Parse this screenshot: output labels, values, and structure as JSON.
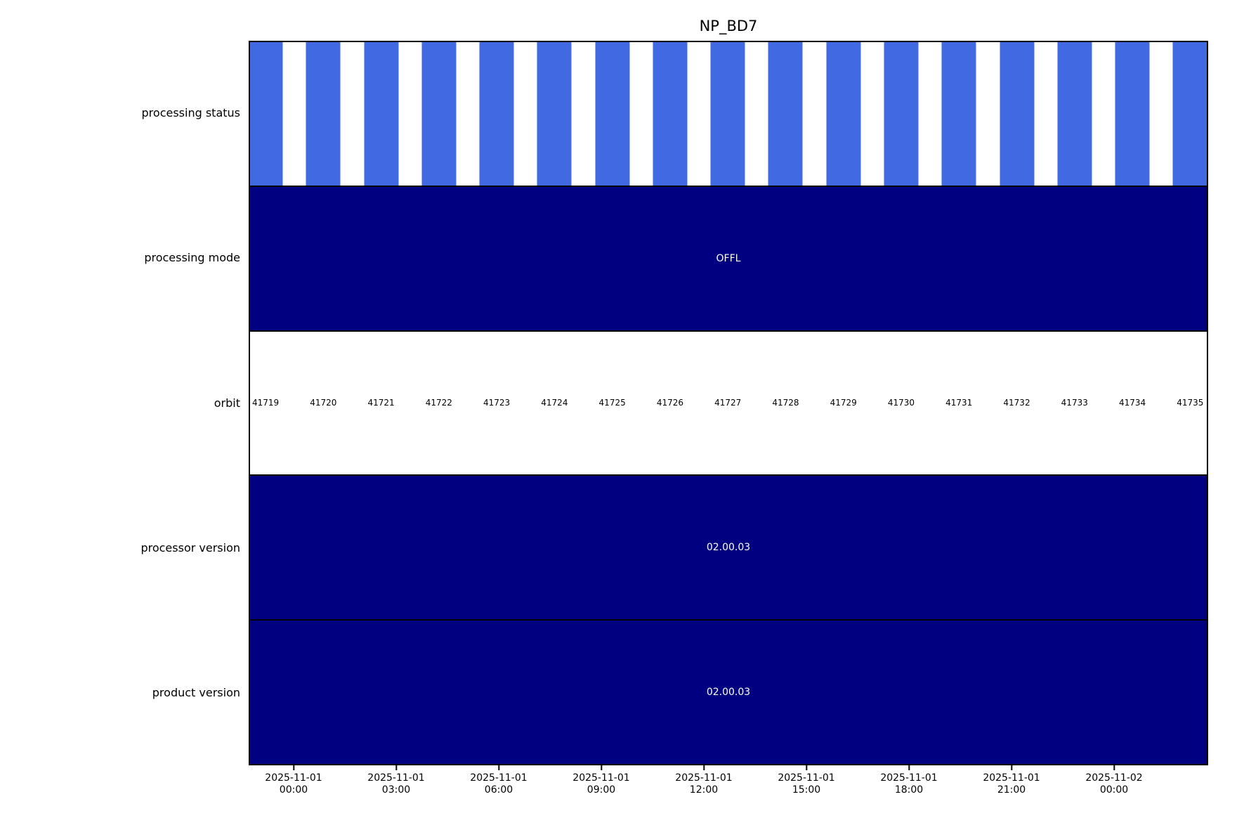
{
  "title": "NP_BD7",
  "colors": {
    "background": "#FFFFFF",
    "bar_blue": "#4169E1",
    "band_navy": "#000080",
    "annotation_text": "#FFFFFF",
    "label_text": "#000000",
    "border": "#000000"
  },
  "chart_data": {
    "type": "bar",
    "subtype": "timeline-status-bands",
    "title": "NP_BD7",
    "grid": false,
    "legend": false,
    "rows": [
      {
        "label": "processing status",
        "kind": "bars",
        "bar_color": "#4169E1",
        "background": "#FFFFFF"
      },
      {
        "label": "processing mode",
        "kind": "solid",
        "background": "#000080",
        "text": "OFFL",
        "text_color": "#FFFFFF"
      },
      {
        "label": "orbit",
        "kind": "orbit-labels",
        "background": "#FFFFFF",
        "text_color": "#000000"
      },
      {
        "label": "processor version",
        "kind": "solid",
        "background": "#000080",
        "text": "02.00.03",
        "text_color": "#FFFFFF"
      },
      {
        "label": "product version",
        "kind": "solid",
        "background": "#000080",
        "text": "02.00.03",
        "text_color": "#FFFFFF"
      }
    ],
    "orbits": [
      41719,
      41720,
      41721,
      41722,
      41723,
      41724,
      41725,
      41726,
      41727,
      41728,
      41729,
      41730,
      41731,
      41732,
      41733,
      41734,
      41735
    ],
    "orbit_layout": {
      "first_center_pct": 1.62,
      "spacing_pct": 6.04,
      "bar_width_pct": 3.6
    },
    "x_axis": {
      "first_tick_pct": 4.55,
      "tick_spacing_pct": 10.72,
      "ticks": [
        {
          "line1": "2025-11-01",
          "line2": "00:00"
        },
        {
          "line1": "2025-11-01",
          "line2": "03:00"
        },
        {
          "line1": "2025-11-01",
          "line2": "06:00"
        },
        {
          "line1": "2025-11-01",
          "line2": "09:00"
        },
        {
          "line1": "2025-11-01",
          "line2": "12:00"
        },
        {
          "line1": "2025-11-01",
          "line2": "15:00"
        },
        {
          "line1": "2025-11-01",
          "line2": "18:00"
        },
        {
          "line1": "2025-11-01",
          "line2": "21:00"
        },
        {
          "line1": "2025-11-02",
          "line2": "00:00"
        }
      ]
    }
  }
}
